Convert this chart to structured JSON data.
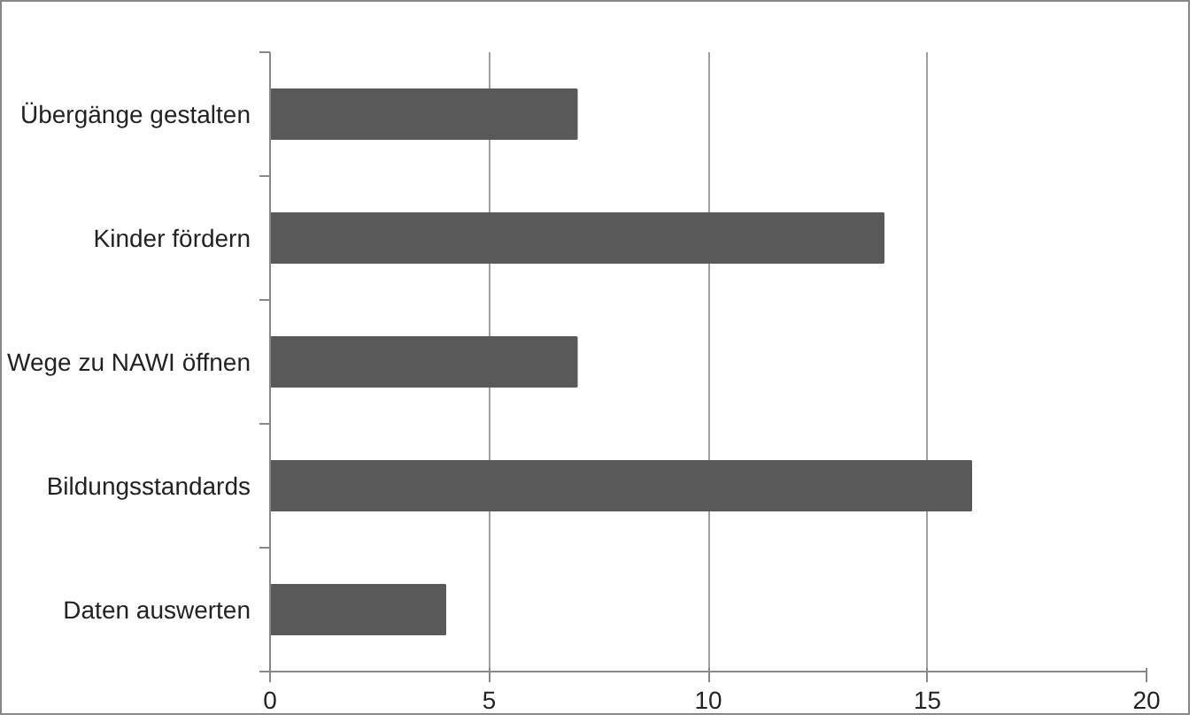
{
  "chart_data": {
    "type": "bar",
    "orientation": "horizontal",
    "categories": [
      "Übergänge gestalten",
      "Kinder fördern",
      "Wege zu NAWI öffnen",
      "Bildungsstandards",
      "Daten auswerten"
    ],
    "values": [
      7,
      14,
      7,
      16,
      4
    ],
    "color": "#595959",
    "xlim": [
      0,
      20
    ],
    "xticks": [
      0,
      5,
      10,
      15,
      20
    ],
    "grid": "x"
  }
}
